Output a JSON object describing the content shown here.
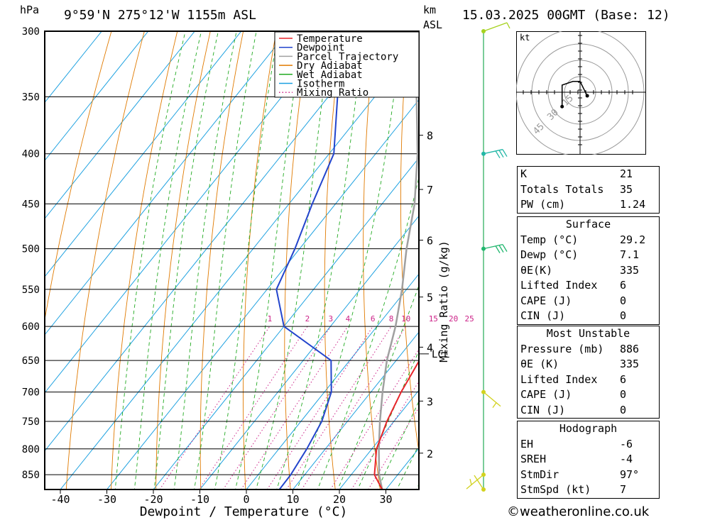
{
  "header": {
    "left_unit": "hPa",
    "location": "9°59'N  275°12'W  1155m  ASL",
    "km_unit": "km",
    "asl_unit": "ASL",
    "datetime": "15.03.2025  00GMT  (Base: 12)"
  },
  "chart_data": {
    "type": "skew-t log-p",
    "xlabel": "Dewpoint / Temperature (°C)",
    "ylabel_left": "hPa",
    "ylabel_right": "Mixing Ratio (g/kg)",
    "x_ticks": [
      -40,
      -30,
      -20,
      -10,
      0,
      10,
      20,
      30
    ],
    "pressure_levels": [
      300,
      350,
      400,
      450,
      500,
      550,
      600,
      650,
      700,
      750,
      800,
      850
    ],
    "km_ticks": [
      {
        "km": "8",
        "p": 383
      },
      {
        "km": "7",
        "p": 435
      },
      {
        "km": "6",
        "p": 490
      },
      {
        "km": "5",
        "p": 560
      },
      {
        "km": "4",
        "p": 630
      },
      {
        "km": "3",
        "p": 715
      },
      {
        "km": "2",
        "p": 808
      }
    ],
    "lcl": {
      "label": "LCL",
      "p": 640
    },
    "mixing_ratio_labels": [
      "1",
      "2",
      "3",
      "4",
      "6",
      "8",
      "10",
      "15",
      "20",
      "25"
    ],
    "legend": [
      {
        "name": "Temperature",
        "color": "#e8242a",
        "style": "solid"
      },
      {
        "name": "Dewpoint",
        "color": "#2244cc",
        "style": "solid"
      },
      {
        "name": "Parcel Trajectory",
        "color": "#a0a0a0",
        "style": "solid"
      },
      {
        "name": "Dry Adiabat",
        "color": "#e07a00",
        "style": "solid"
      },
      {
        "name": "Wet Adiabat",
        "color": "#22aa22",
        "style": "solid"
      },
      {
        "name": "Isotherm",
        "color": "#1aa0e0",
        "style": "solid"
      },
      {
        "name": "Mixing Ratio",
        "color": "#cc2288",
        "style": "dotted"
      }
    ],
    "series": [
      {
        "name": "Temperature",
        "points": [
          [
            880,
            29.2
          ],
          [
            850,
            25
          ],
          [
            800,
            21
          ],
          [
            750,
            18.5
          ],
          [
            700,
            16.5
          ],
          [
            650,
            15
          ],
          [
            600,
            12
          ],
          [
            550,
            8
          ],
          [
            500,
            3
          ],
          [
            450,
            -3
          ],
          [
            400,
            -11
          ],
          [
            350,
            -19
          ],
          [
            300,
            -29
          ]
        ]
      },
      {
        "name": "Dewpoint",
        "points": [
          [
            880,
            7.1
          ],
          [
            850,
            7
          ],
          [
            800,
            6
          ],
          [
            750,
            4.5
          ],
          [
            700,
            1.5
          ],
          [
            650,
            -4
          ],
          [
            600,
            -20
          ],
          [
            550,
            -28
          ],
          [
            500,
            -31
          ],
          [
            450,
            -35
          ],
          [
            400,
            -39
          ],
          [
            350,
            -48
          ],
          [
            300,
            -54
          ]
        ]
      },
      {
        "name": "Parcel Trajectory",
        "points": [
          [
            880,
            29.2
          ],
          [
            850,
            26
          ],
          [
            800,
            21.5
          ],
          [
            750,
            17
          ],
          [
            700,
            12.5
          ],
          [
            650,
            8
          ],
          [
            600,
            4
          ],
          [
            550,
            -1
          ],
          [
            500,
            -7
          ],
          [
            450,
            -13
          ],
          [
            400,
            -21
          ],
          [
            350,
            -31
          ],
          [
            300,
            -42
          ]
        ]
      }
    ],
    "hodograph": {
      "unit": "kt",
      "rings": [
        "15",
        "30",
        "45"
      ],
      "points": [
        [
          -5,
          -4
        ],
        [
          -5,
          2
        ],
        [
          -2,
          3
        ],
        [
          0,
          3
        ],
        [
          2,
          -1
        ]
      ]
    },
    "wind_barbs": [
      {
        "p": 300,
        "color": "#a6d21e"
      },
      {
        "p": 400,
        "color": "#22b7a6"
      },
      {
        "p": 500,
        "color": "#22b76f"
      },
      {
        "p": 700,
        "color": "#d2d21e"
      },
      {
        "p": 850,
        "color": "#d2d21e"
      },
      {
        "p": 880,
        "color": "#d2d21e"
      }
    ],
    "xlim": [
      -44,
      36
    ],
    "ylim": [
      880,
      300
    ]
  },
  "indices": {
    "rows": [
      {
        "k": "K",
        "v": "21"
      },
      {
        "k": "Totals Totals",
        "v": "35"
      },
      {
        "k": "PW (cm)",
        "v": "1.24"
      }
    ]
  },
  "surface": {
    "title": "Surface",
    "rows": [
      {
        "k": "Temp (°C)",
        "v": "29.2"
      },
      {
        "k": "Dewp (°C)",
        "v": "7.1"
      },
      {
        "k": "θE(K)",
        "v": "335"
      },
      {
        "k": "Lifted Index",
        "v": "6"
      },
      {
        "k": "CAPE (J)",
        "v": "0"
      },
      {
        "k": "CIN (J)",
        "v": "0"
      }
    ]
  },
  "most_unstable": {
    "title": "Most Unstable",
    "rows": [
      {
        "k": "Pressure (mb)",
        "v": "886"
      },
      {
        "k": "θE (K)",
        "v": "335"
      },
      {
        "k": "Lifted Index",
        "v": "6"
      },
      {
        "k": "CAPE (J)",
        "v": "0"
      },
      {
        "k": "CIN (J)",
        "v": "0"
      }
    ]
  },
  "hodograph_table": {
    "title": "Hodograph",
    "rows": [
      {
        "k": "EH",
        "v": "-6"
      },
      {
        "k": "SREH",
        "v": "-4"
      },
      {
        "k": "StmDir",
        "v": "97°"
      },
      {
        "k": "StmSpd (kt)",
        "v": "7"
      }
    ]
  },
  "footer": {
    "credit": "©weatheronline.co.uk"
  }
}
